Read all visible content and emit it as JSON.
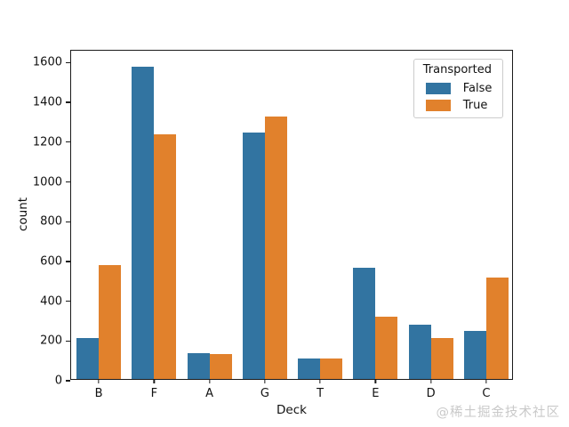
{
  "watermark": "@稀土掘金技术社区",
  "chart_data": {
    "type": "bar",
    "title": "",
    "xlabel": "Deck",
    "ylabel": "count",
    "categories": [
      "B",
      "F",
      "A",
      "G",
      "T",
      "E",
      "D",
      "C"
    ],
    "series": [
      {
        "name": "False",
        "color": "#3274a1",
        "values": [
          207,
          1570,
          129,
          1240,
          102,
          560,
          273,
          241
        ]
      },
      {
        "name": "True",
        "color": "#e1812c",
        "values": [
          572,
          1230,
          126,
          1322,
          102,
          315,
          205,
          508
        ]
      }
    ],
    "legend": {
      "title": "Transported",
      "position": "upper right"
    },
    "ylim": [
      0,
      1660
    ],
    "yticks": [
      0,
      200,
      400,
      600,
      800,
      1000,
      1200,
      1400,
      1600
    ],
    "grid": false,
    "background": "#ffffff"
  }
}
